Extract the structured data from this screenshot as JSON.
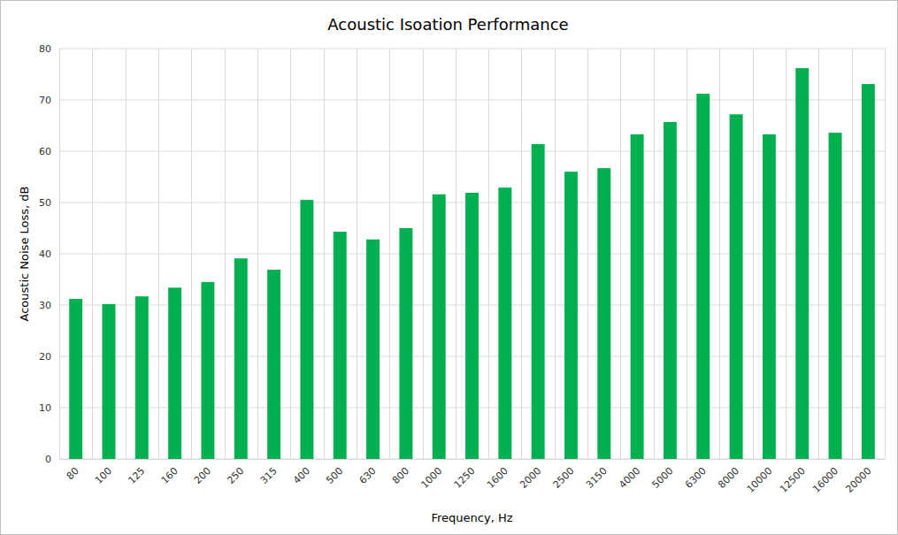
{
  "chart_data": {
    "type": "bar",
    "title": "Acoustic Isoation Performance",
    "x_label": "Frequency, Hz",
    "y_label": "Acoustic Noise Loss, dB",
    "categories": [
      "80",
      "100",
      "125",
      "160",
      "200",
      "250",
      "315",
      "400",
      "500",
      "630",
      "800",
      "1000",
      "1250",
      "1600",
      "2000",
      "2500",
      "3150",
      "4000",
      "5000",
      "6300",
      "8000",
      "10000",
      "12500",
      "16000",
      "20000"
    ],
    "values": [
      31.2,
      30.2,
      31.7,
      33.4,
      34.5,
      39.1,
      36.9,
      50.5,
      44.3,
      42.8,
      45.0,
      51.6,
      51.9,
      52.9,
      61.4,
      56.0,
      56.7,
      63.3,
      65.7,
      71.2,
      67.2,
      63.3,
      76.2,
      63.6,
      73.1
    ],
    "color": "#00b050",
    "ylim": [
      0,
      80
    ],
    "yticks": [
      0,
      10,
      20,
      30,
      40,
      50,
      60,
      70,
      80
    ],
    "grid": true
  }
}
